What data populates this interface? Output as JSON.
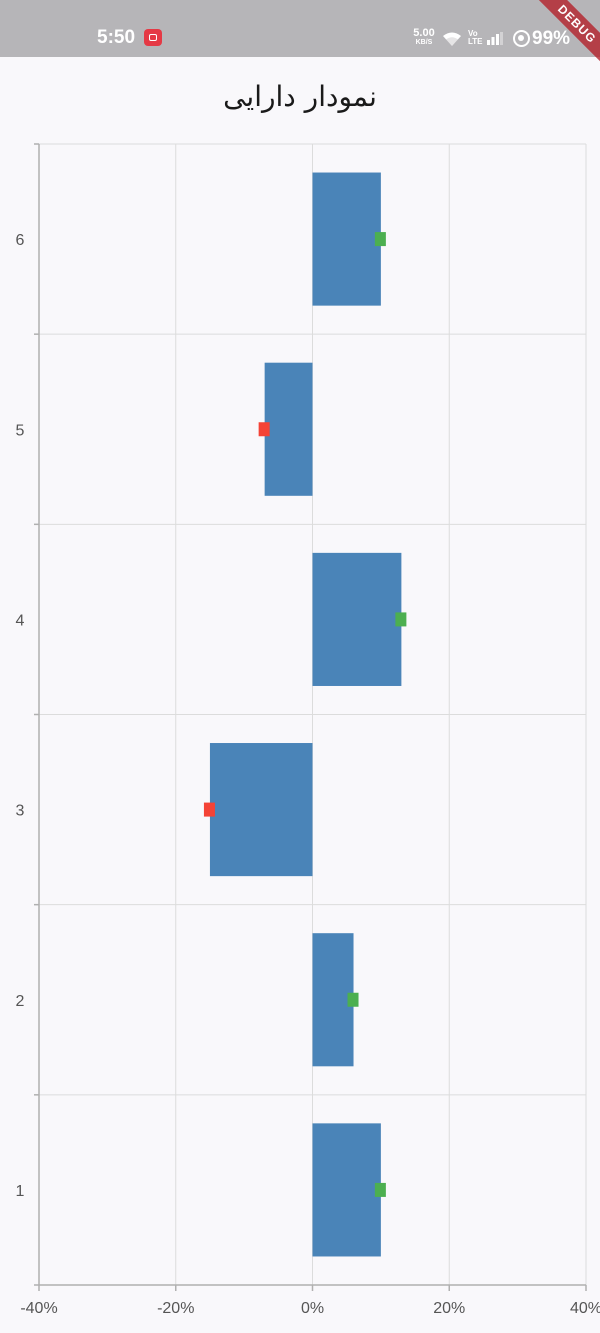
{
  "status_bar": {
    "time": "5:50",
    "net_speed_value": "5.00",
    "net_speed_unit": "KB/S",
    "volte_top": "Vo",
    "volte_bottom": "LTE",
    "battery": "99%",
    "icons": [
      "screen-record-icon",
      "wifi-icon",
      "volte-icon",
      "signal-icon",
      "dnd-icon"
    ]
  },
  "debug_banner": "DEBUG",
  "chart_data": {
    "type": "bar",
    "orientation": "horizontal",
    "title": "نمودار دارایی",
    "categories": [
      "1",
      "2",
      "3",
      "4",
      "5",
      "6"
    ],
    "values": [
      10,
      6,
      -15,
      13,
      -7,
      10
    ],
    "xlim": [
      -40,
      40
    ],
    "x_ticks": [
      -40,
      -20,
      0,
      20,
      40
    ],
    "x_tick_labels": [
      "-40%",
      "-20%",
      "0%",
      "20%",
      "40%"
    ],
    "grid": true,
    "bar_color": "#4a84b8",
    "marker_colors": {
      "positive": "#4caf50",
      "negative": "#f44336"
    }
  }
}
